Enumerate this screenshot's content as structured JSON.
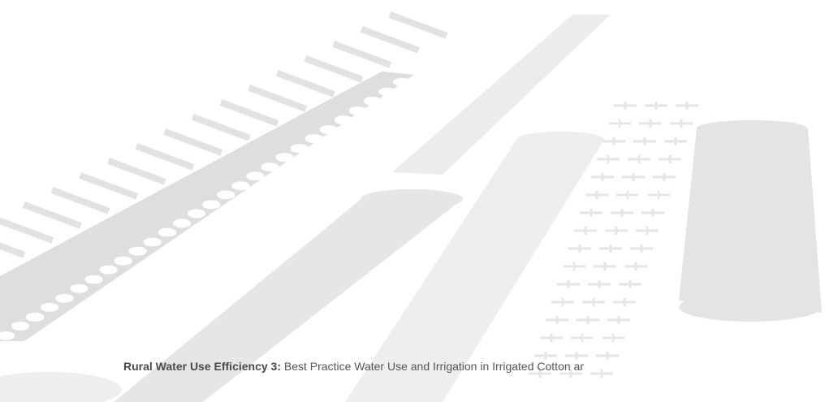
{
  "header": {
    "title": "Rural Water Use Efficiency 3:",
    "subtitle": "Best Practice Water Use and Irrigation in Irrigated Cotton ar"
  }
}
